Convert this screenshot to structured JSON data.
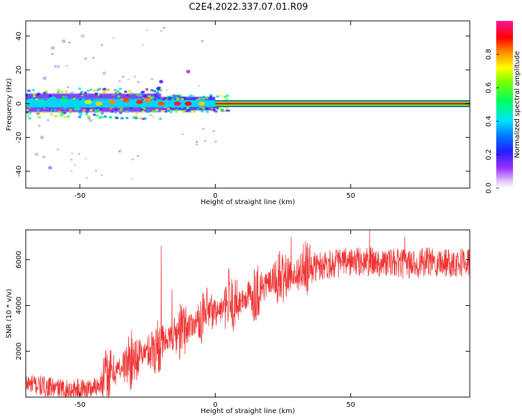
{
  "figure_title": "C2E4.2022.337.07.01.R09",
  "chart_data": [
    {
      "type": "heatmap",
      "title": "",
      "xlabel": "Height of straight line (km)",
      "ylabel": "Frequency (Hz)",
      "xlim": [
        -70,
        94
      ],
      "ylim": [
        -50,
        49
      ],
      "xticks": [
        -50,
        0,
        50
      ],
      "yticks": [
        -40,
        -20,
        0,
        20,
        40
      ],
      "colorbar": {
        "label": "Normalized spectral amplitude",
        "range": [
          0,
          1
        ],
        "ticks": [
          0.0,
          0.2,
          0.4,
          0.6,
          0.8
        ],
        "colormap": [
          "#ffffff",
          "#d8b8f5",
          "#8a2be2",
          "#1a1aff",
          "#00d4ff",
          "#00ff60",
          "#ffff00",
          "#ff6000",
          "#ff0000",
          "#ff1493"
        ]
      },
      "ridge": {
        "frequency_hz": 0,
        "x_start": -70,
        "x_end": 94,
        "strong_from_x": 0
      },
      "bands": [
        {
          "x": [
            -70,
            -20
          ],
          "y": [
            -5,
            6
          ],
          "level": 0.25
        },
        {
          "x": [
            -70,
            -20
          ],
          "y": [
            -2,
            3
          ],
          "level": 0.45
        },
        {
          "x": [
            -20,
            0
          ],
          "y": [
            -4,
            4
          ],
          "level": 0.3
        },
        {
          "x": [
            -20,
            0
          ],
          "y": [
            -1,
            1
          ],
          "level": 0.55
        }
      ],
      "blobs": [
        {
          "x": -68,
          "y": 2,
          "level": 0.45
        },
        {
          "x": -64,
          "y": 1,
          "level": 0.5
        },
        {
          "x": -60,
          "y": 3,
          "level": 0.45
        },
        {
          "x": -56,
          "y": 2,
          "level": 0.55
        },
        {
          "x": -51,
          "y": -3,
          "level": 0.5
        },
        {
          "x": -47,
          "y": 1,
          "level": 0.65
        },
        {
          "x": -43,
          "y": 0,
          "level": 0.7
        },
        {
          "x": -38,
          "y": 1,
          "level": 0.75
        },
        {
          "x": -33,
          "y": 2,
          "level": 0.8
        },
        {
          "x": -28,
          "y": 1,
          "level": 0.85
        },
        {
          "x": -25,
          "y": 2,
          "level": 0.75
        },
        {
          "x": -20,
          "y": 0,
          "level": 0.8
        },
        {
          "x": -14,
          "y": 0,
          "level": 0.95
        },
        {
          "x": -10,
          "y": 0,
          "level": 0.9
        },
        {
          "x": -5,
          "y": 0,
          "level": 0.7
        },
        {
          "x": -20,
          "y": 13,
          "level": 0.25
        },
        {
          "x": -21,
          "y": 9,
          "level": 0.3
        },
        {
          "x": -10,
          "y": 19,
          "level": 0.2
        },
        {
          "x": -60,
          "y": 33,
          "level": 0.12
        },
        {
          "x": -56,
          "y": 37,
          "level": 0.12
        },
        {
          "x": -63,
          "y": 15,
          "level": 0.12
        },
        {
          "x": -64,
          "y": -20,
          "level": 0.12
        },
        {
          "x": -61,
          "y": -38,
          "level": 0.15
        },
        {
          "x": -66,
          "y": -30,
          "level": 0.1
        },
        {
          "x": -49,
          "y": 40,
          "level": 0.1
        },
        {
          "x": -58,
          "y": 22,
          "level": 0.1
        },
        {
          "x": -46,
          "y": -10,
          "level": 0.1
        },
        {
          "x": -41,
          "y": 18,
          "level": 0.1
        }
      ]
    },
    {
      "type": "line",
      "title": "",
      "xlabel": "Height of straight line (km)",
      "ylabel": "SNR (10 * v/v)",
      "xlim": [
        -70,
        94
      ],
      "ylim": [
        0,
        7300
      ],
      "xticks": [
        -50,
        0,
        50
      ],
      "yticks": [
        2000,
        4000,
        6000
      ],
      "color": "#ee3333",
      "trend": [
        {
          "x": -70,
          "y": 600
        },
        {
          "x": -55,
          "y": 300
        },
        {
          "x": -45,
          "y": 400
        },
        {
          "x": -40,
          "y": 900
        },
        {
          "x": -30,
          "y": 1700
        },
        {
          "x": -20,
          "y": 2300
        },
        {
          "x": -10,
          "y": 3100
        },
        {
          "x": 0,
          "y": 3700
        },
        {
          "x": 10,
          "y": 4200
        },
        {
          "x": 20,
          "y": 5000
        },
        {
          "x": 30,
          "y": 5400
        },
        {
          "x": 40,
          "y": 5800
        },
        {
          "x": 50,
          "y": 5900
        },
        {
          "x": 60,
          "y": 5900
        },
        {
          "x": 70,
          "y": 5800
        },
        {
          "x": 80,
          "y": 5900
        },
        {
          "x": 94,
          "y": 5900
        }
      ],
      "peaks": [
        {
          "x": -20,
          "y": 6600
        },
        {
          "x": -16,
          "y": 4700
        },
        {
          "x": 0,
          "y": 4200
        },
        {
          "x": 5,
          "y": 5600
        },
        {
          "x": 8,
          "y": 5100
        },
        {
          "x": 28,
          "y": 7000
        },
        {
          "x": 57,
          "y": 7300
        },
        {
          "x": 70,
          "y": 7000
        }
      ]
    }
  ]
}
